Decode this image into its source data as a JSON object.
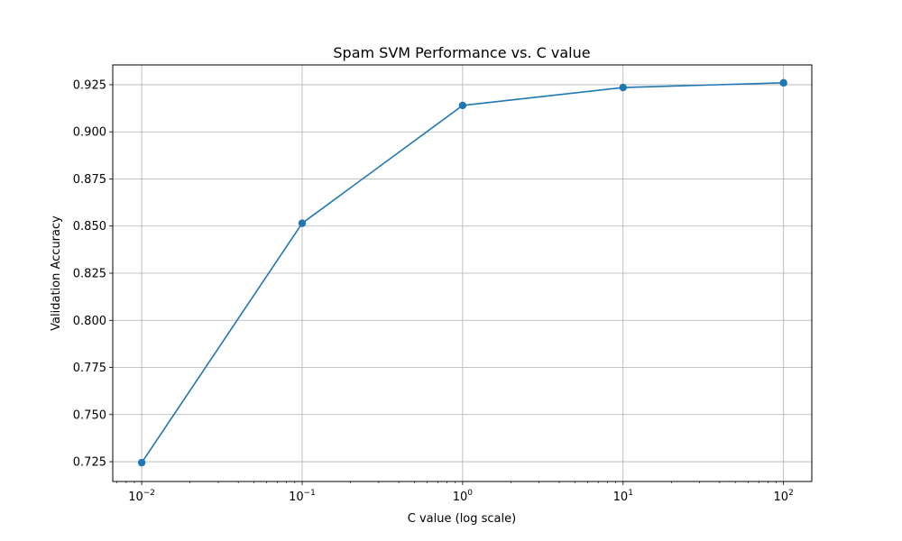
{
  "chart_data": {
    "type": "line",
    "title": "Spam SVM Performance vs. C value",
    "xlabel": "C value (log scale)",
    "ylabel": "Validation Accuracy",
    "xscale": "log",
    "xlim": [
      0.0066,
      150
    ],
    "ylim": [
      0.7145,
      0.9355
    ],
    "grid": true,
    "x": [
      0.01,
      0.1,
      1,
      10,
      100
    ],
    "series": [
      {
        "values": [
          0.7245,
          0.8515,
          0.914,
          0.9235,
          0.926
        ],
        "color": "#1f77b4",
        "marker": "circle"
      }
    ],
    "x_ticks": [
      {
        "value": 0.01,
        "base": "10",
        "exp": "−2"
      },
      {
        "value": 0.1,
        "base": "10",
        "exp": "−1"
      },
      {
        "value": 1,
        "base": "10",
        "exp": "0"
      },
      {
        "value": 10,
        "base": "10",
        "exp": "1"
      },
      {
        "value": 100,
        "base": "10",
        "exp": "2"
      }
    ],
    "y_ticks": [
      {
        "value": 0.725,
        "label": "0.725"
      },
      {
        "value": 0.75,
        "label": "0.750"
      },
      {
        "value": 0.775,
        "label": "0.775"
      },
      {
        "value": 0.8,
        "label": "0.800"
      },
      {
        "value": 0.825,
        "label": "0.825"
      },
      {
        "value": 0.85,
        "label": "0.850"
      },
      {
        "value": 0.875,
        "label": "0.875"
      },
      {
        "value": 0.9,
        "label": "0.900"
      },
      {
        "value": 0.925,
        "label": "0.925"
      }
    ]
  }
}
